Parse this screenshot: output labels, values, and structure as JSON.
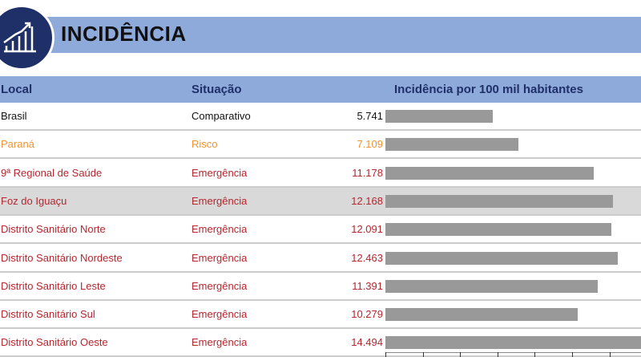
{
  "header": {
    "title": "INCIDÊNCIA",
    "icon": "chart-growth-icon"
  },
  "colors": {
    "header_bg": "#8eaadb",
    "title_dark": "#1f3068",
    "emergencia": "#b5262e",
    "risco": "#ef9433",
    "comparativo": "#111111",
    "bar": "#999999"
  },
  "chart_data": {
    "type": "bar",
    "orientation": "horizontal",
    "columns": [
      "Local",
      "Situação",
      "Incidência por 100 mil habitantes"
    ],
    "rows": [
      {
        "local": "Brasil",
        "situacao": "Comparativo",
        "value": 5741,
        "label": "5.741"
      },
      {
        "local": "Paraná",
        "situacao": "Risco",
        "value": 7109,
        "label": "7.109"
      },
      {
        "local": "9ª Regional de Saúde",
        "situacao": "Emergência",
        "value": 11178,
        "label": "11.178"
      },
      {
        "local": "Foz do Iguaçu",
        "situacao": "Emergência",
        "value": 12168,
        "label": "12.168",
        "highlight": true
      },
      {
        "local": "Distrito Sanitário Norte",
        "situacao": "Emergência",
        "value": 12091,
        "label": "12.091"
      },
      {
        "local": "Distrito Sanitário Nordeste",
        "situacao": "Emergência",
        "value": 12463,
        "label": "12.463"
      },
      {
        "local": "Distrito Sanitário Leste",
        "situacao": "Emergência",
        "value": 11391,
        "label": "11.391"
      },
      {
        "local": "Distrito Sanitário Sul",
        "situacao": "Emergência",
        "value": 10279,
        "label": "10.279"
      },
      {
        "local": "Distrito Sanitário Oeste",
        "situacao": "Emergência",
        "value": 14494,
        "label": "14.494"
      }
    ],
    "xlim": [
      0,
      14000
    ],
    "tick_step": 2000
  }
}
